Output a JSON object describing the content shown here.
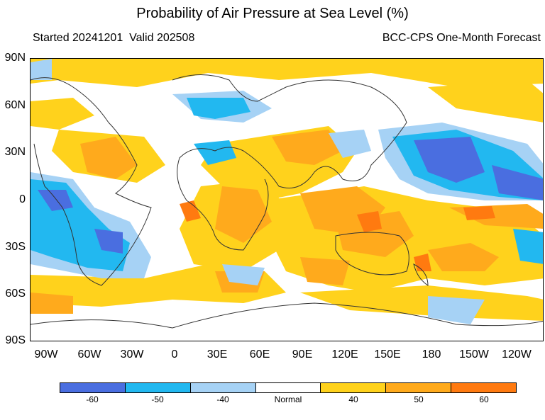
{
  "title": "Probability of Air Pressure at Sea Level (%)",
  "subtitle_left": "Started 20241201  Valid 202508",
  "subtitle_right": "BCC-CPS One-Month Forecast",
  "lat_labels": [
    "90N",
    "60N",
    "30N",
    "0",
    "30S",
    "60S",
    "90S"
  ],
  "lon_labels": [
    "90W",
    "60W",
    "30W",
    "0",
    "30E",
    "60E",
    "90E",
    "120E",
    "150E",
    "180",
    "150W",
    "120W"
  ],
  "legend": {
    "colors": [
      "#4a6ee0",
      "#22b8f0",
      "#a6d2f5",
      "#ffffff",
      "#ffd21c",
      "#ffaa1c",
      "#ff7a10"
    ],
    "labels": [
      "-60",
      "-50",
      "-40",
      "Normal",
      "40",
      "50",
      "60"
    ]
  },
  "map_colors": {
    "ocean_base": "#ffffff",
    "coast": "#333333",
    "below_normal": [
      "#a6d2f5",
      "#22b8f0",
      "#4a6ee0"
    ],
    "above_normal": [
      "#ffd21c",
      "#ffaa1c",
      "#ff7a10"
    ]
  }
}
